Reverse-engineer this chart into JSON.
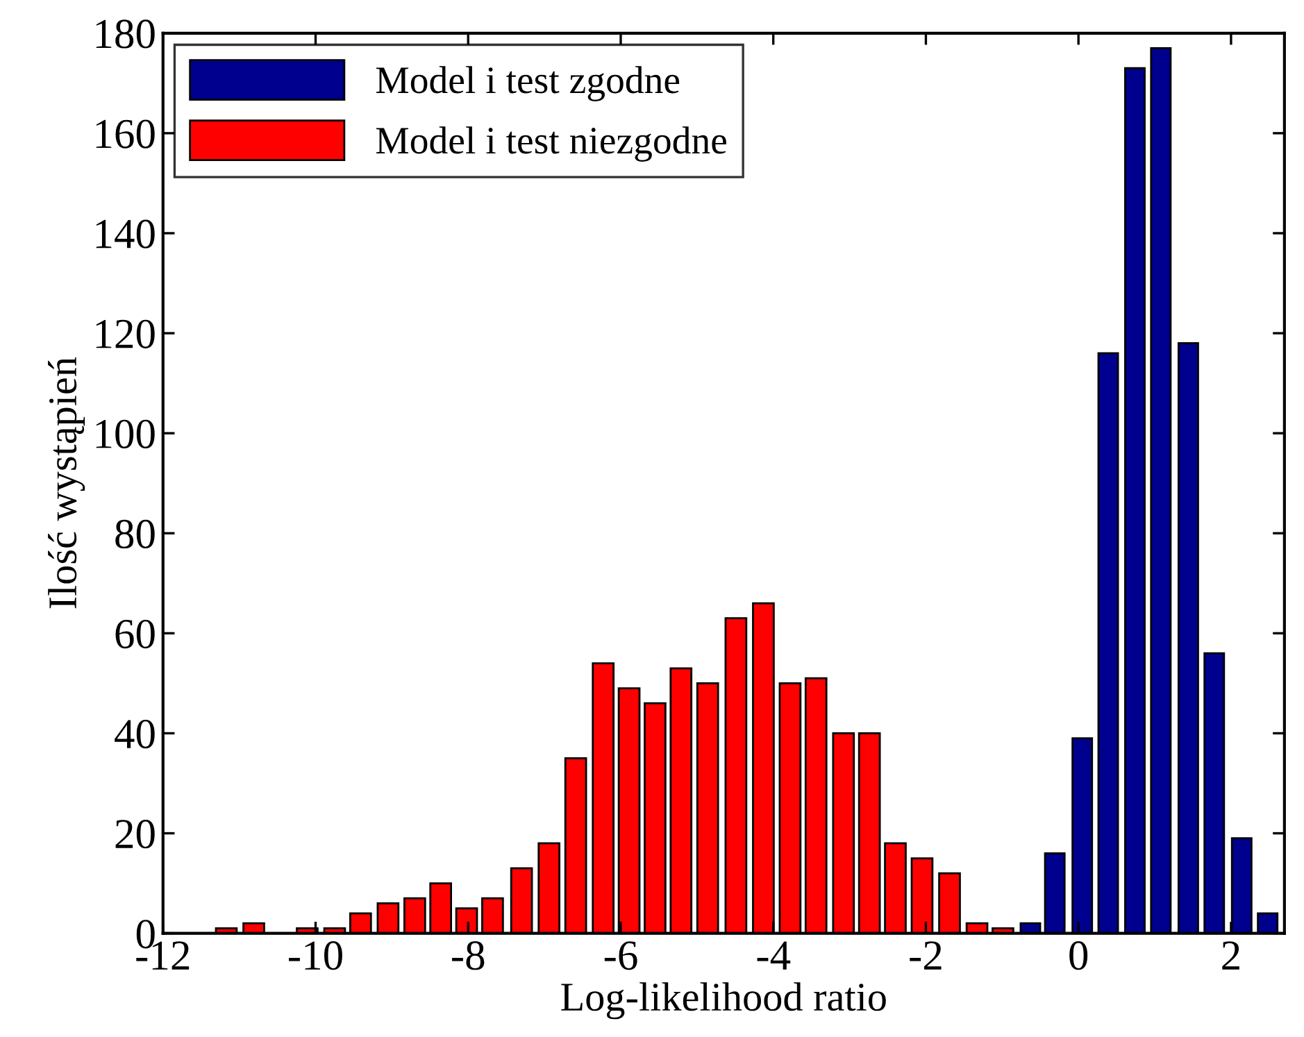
{
  "chart_data": {
    "type": "bar",
    "xlabel": "Log-likelihood ratio",
    "ylabel": "Ilość wystąpień",
    "xlim": [
      -12,
      2.7
    ],
    "xticks": [
      -12,
      -10,
      -8,
      -6,
      -4,
      -2,
      0,
      2
    ],
    "ylim": [
      0,
      180
    ],
    "yticks": [
      0,
      20,
      40,
      60,
      80,
      100,
      120,
      140,
      160,
      180
    ],
    "grid": false,
    "legend": "top left",
    "series": [
      {
        "name": "Model i test zgodne",
        "color": "#00008f",
        "x": [
          -0.63,
          -0.31,
          0.05,
          0.39,
          0.74,
          1.08,
          1.44,
          1.78,
          2.14,
          2.48
        ],
        "values": [
          2,
          16,
          39,
          116,
          173,
          177,
          118,
          56,
          19,
          4
        ]
      },
      {
        "name": "Model i test niezgodne",
        "color": "#ff0000",
        "x": [
          -11.17,
          -10.81,
          -10.11,
          -9.75,
          -9.41,
          -9.05,
          -8.7,
          -8.36,
          -8.02,
          -7.68,
          -7.3,
          -6.94,
          -6.59,
          -6.23,
          -5.89,
          -5.55,
          -5.21,
          -4.86,
          -4.49,
          -4.13,
          -3.78,
          -3.44,
          -3.08,
          -2.74,
          -2.4,
          -2.05,
          -1.69,
          -1.33,
          -0.99
        ],
        "values": [
          1,
          2,
          1,
          1,
          4,
          6,
          7,
          10,
          5,
          7,
          13,
          18,
          35,
          54,
          49,
          46,
          53,
          50,
          63,
          66,
          50,
          51,
          40,
          40,
          18,
          15,
          12,
          2,
          1
        ]
      }
    ]
  }
}
